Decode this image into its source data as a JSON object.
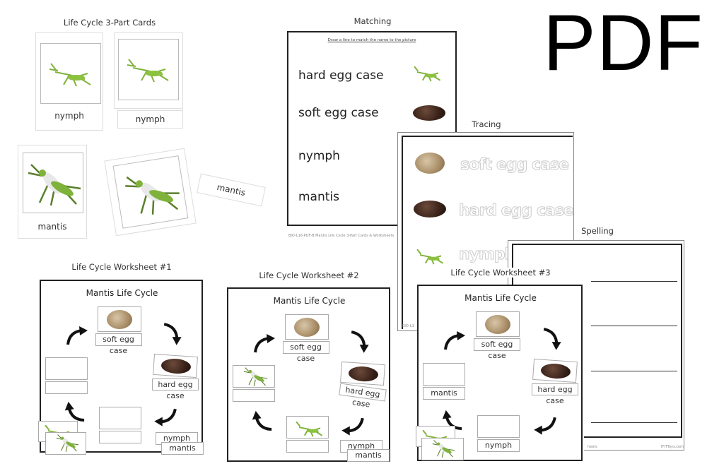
{
  "badge": "PDF",
  "sections": {
    "three_part": "Life Cycle 3-Part Cards",
    "matching": "Matching",
    "tracing": "Tracing",
    "spelling": "Spelling",
    "ws1": "Life Cycle Worksheet #1",
    "ws2": "Life Cycle Worksheet #2",
    "ws3": "Life Cycle Worksheet #3"
  },
  "cards": {
    "nymph": "nymph",
    "mantis": "mantis"
  },
  "matching": {
    "instruction": "Draw a line to match the name to the picture",
    "words": [
      "hard egg case",
      "soft egg case",
      "nymph",
      "mantis"
    ],
    "footer": "BIO-L16-PDF-B Mantis Life Cycle 3-Part Cards & Worksheets"
  },
  "tracing": {
    "words": [
      "soft egg case",
      "hard egg case",
      "nymph"
    ],
    "footer": "BIO-L1"
  },
  "spelling": {
    "footer_left": "heets",
    "footer_right": "IFITToys.com"
  },
  "worksheet": {
    "title": "Mantis Life Cycle",
    "labels": {
      "soft": "soft egg case",
      "hard": "hard egg case",
      "nymph": "nymph",
      "mantis": "mantis"
    }
  },
  "colors": {
    "mantis_green": "#7fb23a",
    "soft_egg": "#b59a72",
    "hard_egg": "#3a2219"
  }
}
